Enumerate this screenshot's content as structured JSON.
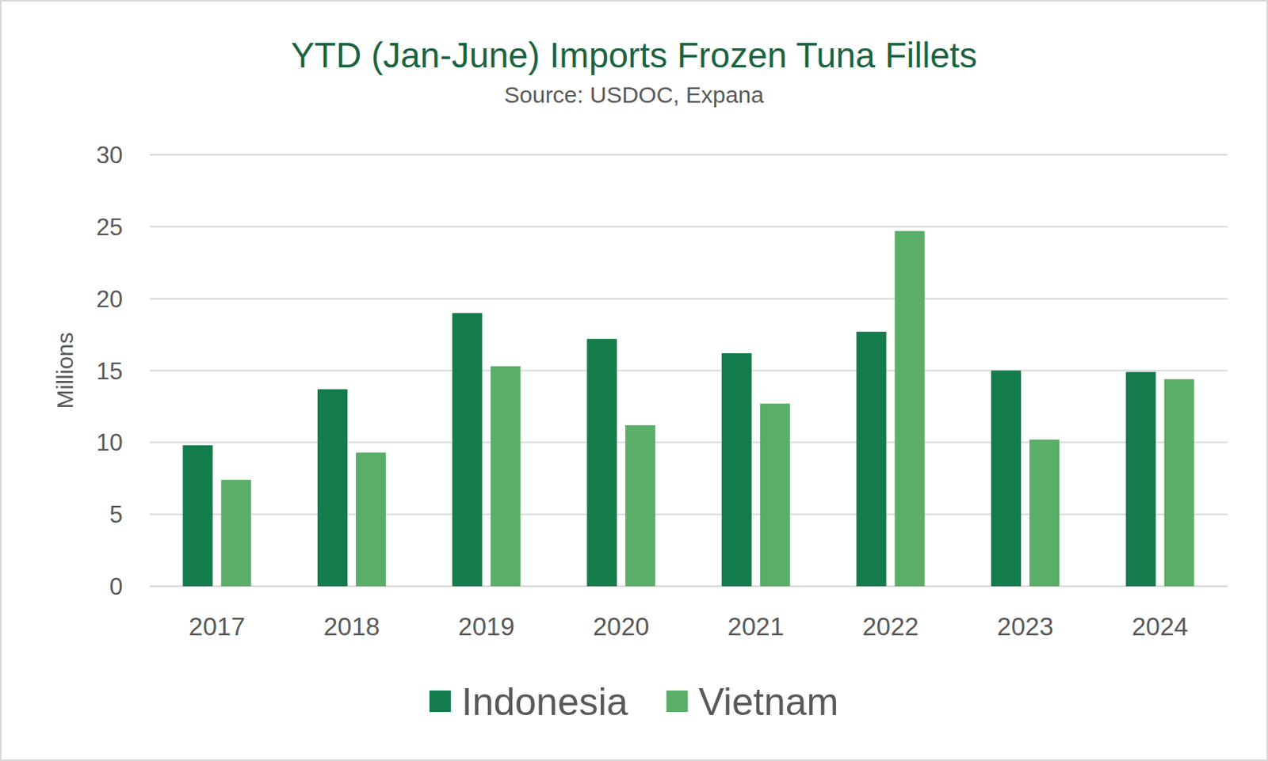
{
  "chart_data": {
    "type": "bar",
    "title": "YTD (Jan-June) Imports  Frozen Tuna Fillets",
    "subtitle": "Source: USDOC, Expana",
    "y_label": "Millions",
    "categories": [
      "2017",
      "2018",
      "2019",
      "2020",
      "2021",
      "2022",
      "2023",
      "2024"
    ],
    "series": [
      {
        "name": "Indonesia",
        "color": "#137b4c",
        "values": [
          9.8,
          13.7,
          19.0,
          17.2,
          16.2,
          17.7,
          15.0,
          14.9
        ]
      },
      {
        "name": "Vietnam",
        "color": "#5aae67",
        "values": [
          7.4,
          9.3,
          15.3,
          11.2,
          12.7,
          24.7,
          10.2,
          14.4
        ]
      }
    ],
    "ylim": [
      0,
      30
    ],
    "yticks": [
      0,
      5,
      10,
      15,
      20,
      25,
      30
    ],
    "grid": true,
    "legend": "bottom"
  }
}
